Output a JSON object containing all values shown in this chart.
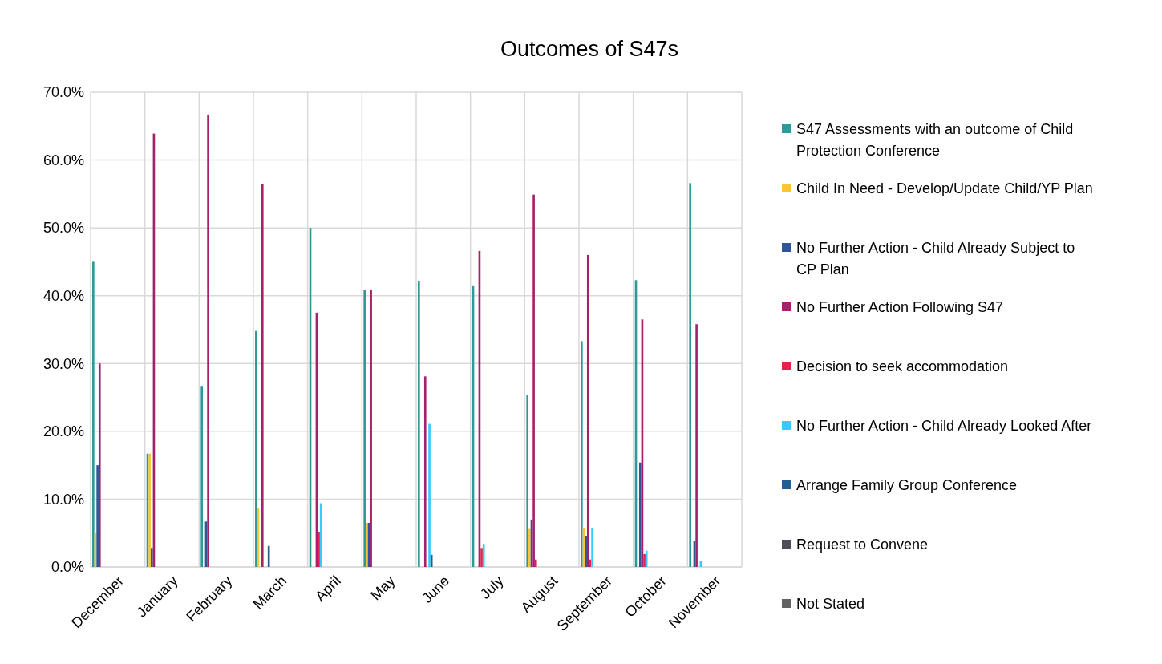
{
  "chart_data": {
    "type": "bar",
    "title": "Outcomes of S47s",
    "categories": [
      "December",
      "January",
      "February",
      "March",
      "April",
      "May",
      "June",
      "July",
      "August",
      "September",
      "October",
      "November"
    ],
    "series": [
      {
        "name": "S47 Assessments with an outcome of Child Protection Conference",
        "color": "#31989a",
        "values": [
          45.0,
          16.7,
          26.7,
          34.8,
          50.0,
          40.8,
          42.1,
          41.4,
          25.4,
          33.3,
          42.3,
          56.6
        ]
      },
      {
        "name": "Child In Need - Develop/Update Child/YP Plan",
        "color": "#fcc72e",
        "values": [
          5.0,
          16.7,
          0,
          8.7,
          0,
          6.5,
          0,
          0,
          5.6,
          5.8,
          0,
          0
        ]
      },
      {
        "name": "No Further Action - Child Already Subject to CP Plan",
        "color": "#2e5597",
        "values": [
          15.0,
          2.8,
          6.7,
          0,
          0,
          6.5,
          0,
          0,
          7.0,
          4.6,
          15.4,
          3.8
        ]
      },
      {
        "name": "No Further Action Following S47",
        "color": "#a6206c",
        "values": [
          30.0,
          63.9,
          66.7,
          56.5,
          37.5,
          40.8,
          28.1,
          46.6,
          54.9,
          46.0,
          36.5,
          35.8
        ]
      },
      {
        "name": "Decision to seek accommodation",
        "color": "#ea1f4c",
        "values": [
          0,
          0,
          0,
          0,
          5.2,
          0,
          0,
          2.8,
          1.1,
          1.1,
          1.9,
          0
        ]
      },
      {
        "name": "No Further Action - Child Already Looked After",
        "color": "#33ccfd",
        "values": [
          0,
          0,
          0,
          0,
          9.4,
          0,
          21.1,
          3.4,
          0,
          5.8,
          2.4,
          0.9
        ]
      },
      {
        "name": "Arrange Family Group Conference",
        "color": "#255e91",
        "values": [
          0,
          0,
          0,
          3.1,
          0,
          0,
          1.8,
          0,
          0,
          0,
          0,
          0
        ]
      },
      {
        "name": "Request to Convene",
        "color": "#4e4e56",
        "values": [
          0,
          0,
          0,
          0,
          0,
          0,
          0,
          0,
          0,
          0,
          0,
          0
        ]
      },
      {
        "name": "Not Stated",
        "color": "#636363",
        "values": [
          0,
          0,
          0,
          0,
          0,
          0,
          0,
          0,
          0,
          0,
          0,
          0
        ]
      }
    ],
    "ylim": [
      0,
      70
    ],
    "yticks": [
      {
        "value": 0,
        "label": "0.0%"
      },
      {
        "value": 10,
        "label": "10.0%"
      },
      {
        "value": 20,
        "label": "20.0%"
      },
      {
        "value": 30,
        "label": "30.0%"
      },
      {
        "value": 40,
        "label": "40.0%"
      },
      {
        "value": 50,
        "label": "50.0%"
      },
      {
        "value": 60,
        "label": "60.0%"
      },
      {
        "value": 70,
        "label": "70.0%"
      }
    ],
    "grid": true,
    "legend": "right"
  }
}
